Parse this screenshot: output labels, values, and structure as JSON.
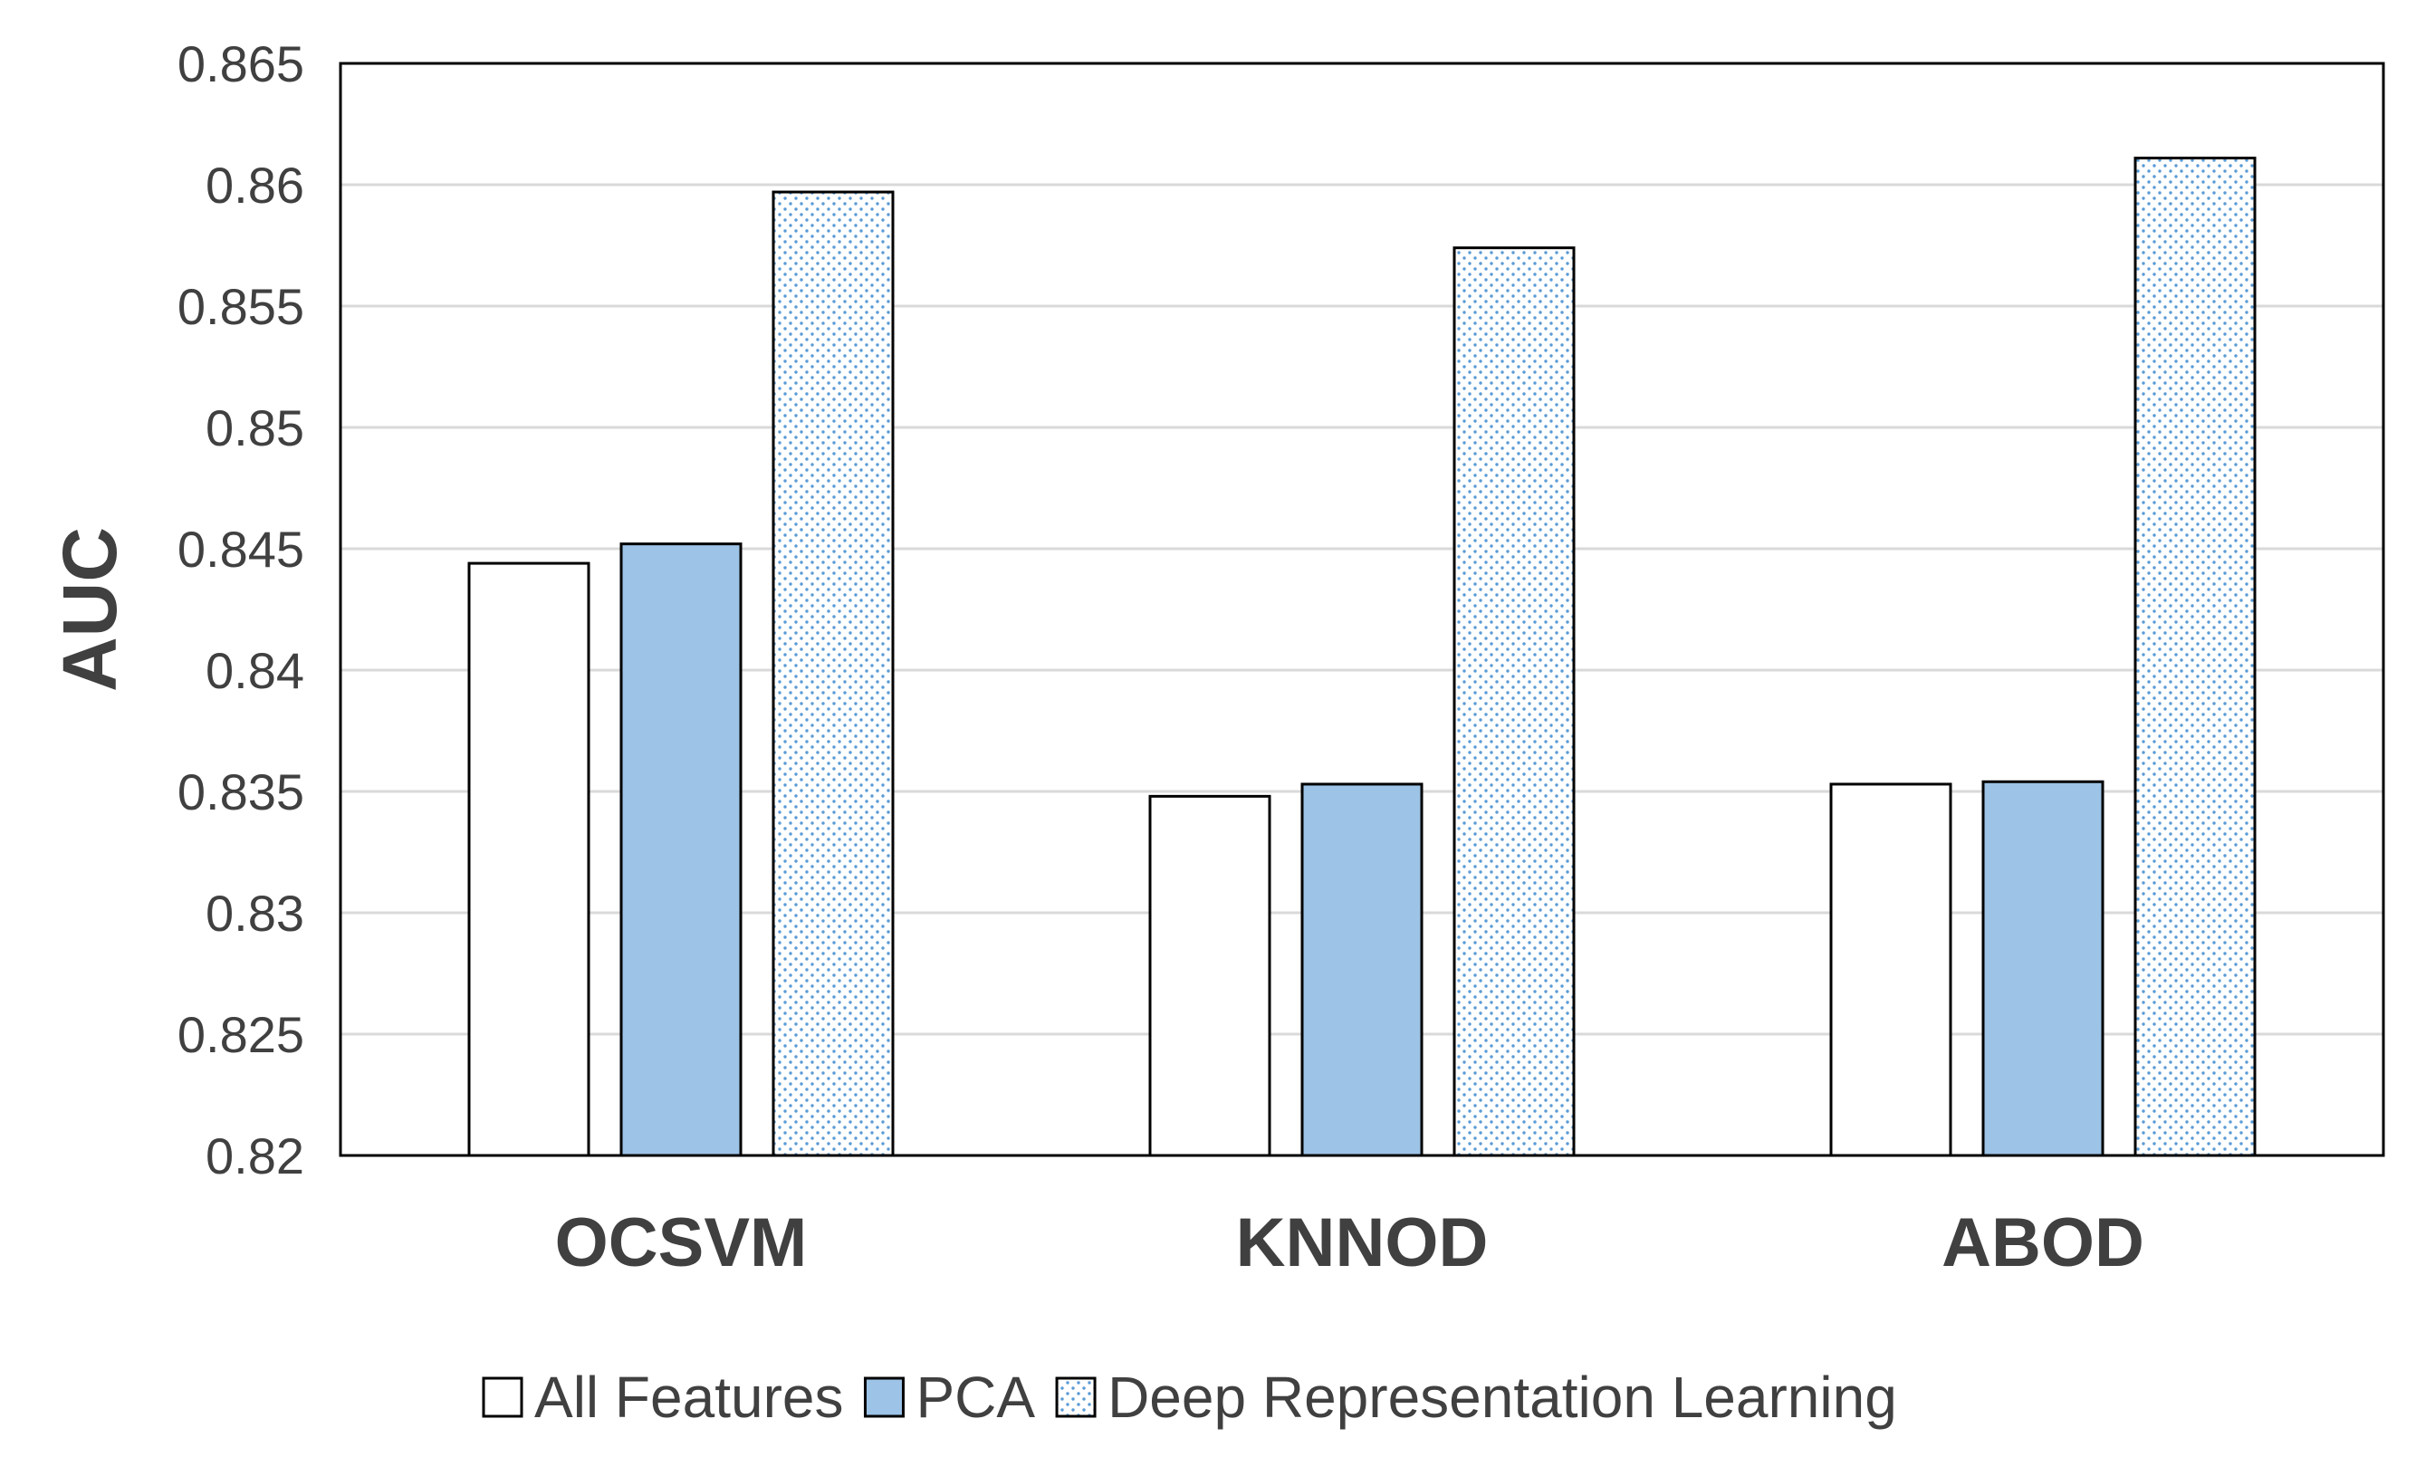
{
  "chart_data": {
    "type": "bar",
    "title": "",
    "xlabel": "",
    "ylabel": "AUC",
    "ylim": [
      0.82,
      0.865
    ],
    "yticks": [
      "0.82",
      "0.825",
      "0.83",
      "0.835",
      "0.84",
      "0.845",
      "0.85",
      "0.855",
      "0.86",
      "0.865"
    ],
    "grid": true,
    "legend_position": "bottom",
    "categories": [
      "OCSVM",
      "KNNOD",
      "ABOD"
    ],
    "series": [
      {
        "name": "All Features",
        "values": [
          0.8444,
          0.8348,
          0.8353
        ],
        "fill": "#ffffff",
        "pattern": "none"
      },
      {
        "name": "PCA",
        "values": [
          0.8452,
          0.8353,
          0.8354
        ],
        "fill": "#9dc3e6",
        "pattern": "none"
      },
      {
        "name": "Deep Representation Learning",
        "values": [
          0.8597,
          0.8574,
          0.8611
        ],
        "fill": "#ffffff",
        "pattern": "dots",
        "dot_color": "#5b9bd5"
      }
    ],
    "colors": {
      "gridline": "#d9d9d9",
      "axis": "#000000",
      "bar_outline": "#000000",
      "text": "#404040"
    }
  }
}
